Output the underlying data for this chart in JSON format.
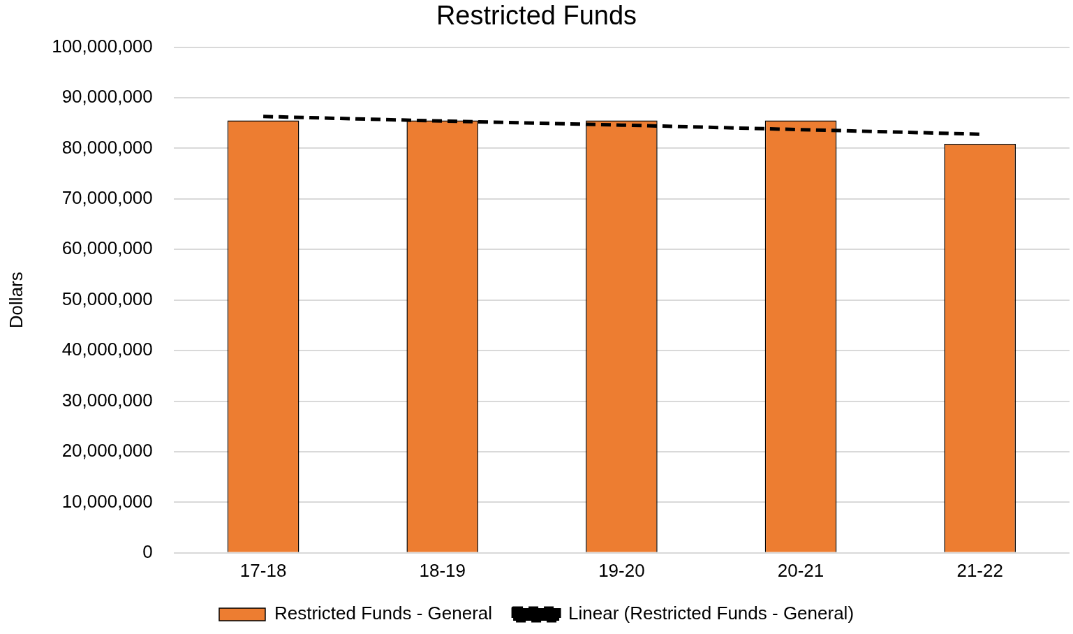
{
  "chart_data": {
    "type": "bar",
    "title": "Restricted Funds",
    "ylabel": "Dollars",
    "categories": [
      "17-18",
      "18-19",
      "19-20",
      "20-21",
      "21-22"
    ],
    "series": [
      {
        "name": "Restricted Funds - General",
        "color": "#ed7d31",
        "values": [
          85500000,
          85500000,
          85500000,
          85500000,
          80900000
        ]
      },
      {
        "name": "Linear (Restricted Funds - General)",
        "type": "line",
        "color": "#000000",
        "line_style": "dashed",
        "marker": "none",
        "values": [
          86300000,
          85400000,
          84600000,
          83700000,
          82800000
        ]
      }
    ],
    "ylim": [
      0,
      100000000
    ],
    "yticks": [
      0,
      {
        "value": 10000000,
        "label": "10,000,000"
      },
      {
        "value": 20000000,
        "label": "20,000,000"
      },
      {
        "value": 30000000,
        "label": "30,000,000"
      },
      {
        "value": 40000000,
        "label": "40,000,000"
      },
      {
        "value": 50000000,
        "label": "50,000,000"
      },
      {
        "value": 60000000,
        "label": "60,000,000"
      },
      {
        "value": 70000000,
        "label": "70,000,000"
      },
      {
        "value": 80000000,
        "label": "80,000,000"
      },
      {
        "value": 90000000,
        "label": "90,000,000"
      },
      {
        "value": 100000000,
        "label": "100,000,000"
      }
    ],
    "grid": "y",
    "legend": "bottom"
  }
}
